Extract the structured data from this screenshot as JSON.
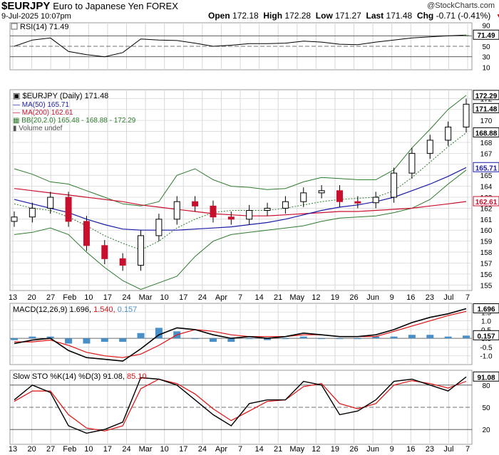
{
  "header": {
    "symbol": "$EURJPY",
    "description": "Euro to Japanese Yen FOREX",
    "watermark": "@StockCharts.com",
    "date": "9-Jul-2025 10:07pm",
    "open_label": "Open",
    "open": "172.18",
    "high_label": "High",
    "high": "172.28",
    "low_label": "Low",
    "low": "171.27",
    "last_label": "Last",
    "last": "171.48",
    "chg_label": "Chg",
    "chg": "-0.71 (-0.41%)",
    "chg_arrow": "▼"
  },
  "rsi_panel": {
    "legend": "RSI(14) 71.49",
    "value_tag": "71.49",
    "ticks": [
      "90",
      "70",
      "50",
      "30",
      "10"
    ]
  },
  "price_panel": {
    "legend": {
      "main": "$EURJPY (Daily) 171.48",
      "ma50": "MA(50) 165.71",
      "ma200": "MA(200) 162.61",
      "bb": "BB(20,2.0) 165.48 - 168.88 - 172.29",
      "volume": "Volume undef"
    },
    "ticks": [
      "172",
      "171",
      "170",
      "169",
      "168",
      "167",
      "166",
      "165",
      "164",
      "163",
      "162",
      "161",
      "160",
      "159",
      "158",
      "157",
      "156",
      "155"
    ],
    "value_tags": {
      "bb_upper": "172.29",
      "last": "171.48",
      "bb_mid": "168.88",
      "ma50": "165.71",
      "ma200": "162.61"
    }
  },
  "macd_panel": {
    "legend_prefix": "MACD(12,26,9)",
    "macd": "1.696",
    "signal": "1.540",
    "hist": "0.157",
    "ticks": [
      "1.5",
      "1.0",
      "0.5",
      "0.0",
      "-0.5",
      "-1.0"
    ]
  },
  "sto_panel": {
    "legend_prefix": "Slow STO %K(14) %D(3)",
    "k": "91.08",
    "d": "85.10",
    "ticks": [
      "80",
      "50",
      "20"
    ]
  },
  "x_axis_labels": [
    "13",
    "20",
    "27",
    "Feb",
    "10",
    "17",
    "24",
    "Mar",
    "10",
    "17",
    "24",
    "Apr",
    "7",
    "14",
    "21",
    "May",
    "12",
    "19",
    "26",
    "Jun",
    "9",
    "16",
    "23",
    "Jul",
    "7"
  ],
  "colors": {
    "up_candle": "#000000",
    "down_candle": "#c8102e",
    "ma50": "#1a1aa6",
    "ma200": "#c8102e",
    "bb": "#2d7a2d",
    "bb_mid": "#2d7a2d",
    "rsi_line": "#000000",
    "rsi_fill": "#2d7a2d",
    "macd_line": "#000000",
    "signal_line": "#e01010",
    "hist": "#4a90c8",
    "sto_k": "#000000",
    "sto_d": "#e01010",
    "grid": "#d8d8d8"
  },
  "chart_data": {
    "type": "line",
    "title": "$EURJPY Euro to Japanese Yen FOREX",
    "x": [
      "Jan 13",
      "Jan 20",
      "Jan 27",
      "Feb 3",
      "Feb 10",
      "Feb 17",
      "Feb 24",
      "Mar 3",
      "Mar 10",
      "Mar 17",
      "Mar 24",
      "Mar 31",
      "Apr 7",
      "Apr 14",
      "Apr 21",
      "Apr 28",
      "May 5",
      "May 12",
      "May 19",
      "May 26",
      "Jun 2",
      "Jun 9",
      "Jun 16",
      "Jun 23",
      "Jun 30",
      "Jul 7"
    ],
    "price_close": [
      161.2,
      162.0,
      163.0,
      160.8,
      158.6,
      157.4,
      156.8,
      159.5,
      161.0,
      162.6,
      162.2,
      161.2,
      161.0,
      161.8,
      162.0,
      162.6,
      163.4,
      163.6,
      162.6,
      162.5,
      163.0,
      165.2,
      167.0,
      168.2,
      169.4,
      171.48
    ],
    "series": [
      {
        "name": "MA(50)",
        "values": [
          162.8,
          162.4,
          162.0,
          161.6,
          161.0,
          160.5,
          160.1,
          160.0,
          160.0,
          160.0,
          160.1,
          160.2,
          160.3,
          160.5,
          160.7,
          161.0,
          161.4,
          161.8,
          162.1,
          162.3,
          162.6,
          163.0,
          163.6,
          164.2,
          164.9,
          165.71
        ]
      },
      {
        "name": "MA(200)",
        "values": [
          163.8,
          163.6,
          163.4,
          163.2,
          163.0,
          162.8,
          162.6,
          162.3,
          162.1,
          161.9,
          161.7,
          161.5,
          161.4,
          161.3,
          161.3,
          161.4,
          161.5,
          161.6,
          161.7,
          161.7,
          161.8,
          161.9,
          162.0,
          162.2,
          162.4,
          162.61
        ]
      },
      {
        "name": "BB upper",
        "values": [
          165.6,
          165.1,
          164.4,
          164.2,
          163.6,
          163.0,
          162.4,
          162.2,
          162.6,
          165.0,
          165.6,
          164.6,
          164.0,
          163.9,
          163.7,
          163.8,
          164.4,
          164.8,
          164.7,
          164.6,
          164.6,
          165.5,
          167.5,
          169.2,
          171.0,
          172.29
        ]
      },
      {
        "name": "BB middle",
        "values": [
          162.4,
          162.0,
          161.8,
          161.2,
          160.4,
          159.5,
          158.8,
          158.2,
          159.0,
          160.2,
          161.0,
          161.6,
          161.8,
          161.8,
          161.8,
          162.0,
          162.3,
          162.6,
          162.8,
          162.9,
          163.0,
          163.6,
          164.8,
          166.2,
          167.6,
          168.88
        ]
      },
      {
        "name": "BB lower",
        "values": [
          159.6,
          159.8,
          160.2,
          159.6,
          158.0,
          156.6,
          155.4,
          154.6,
          155.2,
          155.8,
          157.6,
          159.0,
          159.6,
          159.8,
          160.0,
          160.2,
          160.4,
          160.8,
          161.1,
          161.2,
          161.3,
          161.6,
          162.0,
          162.8,
          164.2,
          165.48
        ]
      }
    ],
    "rsi": [
      50,
      62,
      66,
      40,
      34,
      30,
      38,
      64,
      62,
      61,
      56,
      50,
      52,
      55,
      55,
      56,
      60,
      58,
      54,
      53,
      58,
      62,
      66,
      68,
      70,
      71.49
    ],
    "macd": [
      -0.3,
      -0.1,
      0.0,
      -0.7,
      -1.1,
      -1.2,
      -1.3,
      -0.6,
      0.2,
      0.6,
      0.5,
      0.2,
      0.0,
      0.1,
      0.0,
      0.1,
      0.3,
      0.2,
      0.1,
      0.1,
      0.2,
      0.5,
      0.9,
      1.2,
      1.4,
      1.696
    ],
    "macd_signal": [
      -0.2,
      -0.2,
      -0.1,
      -0.4,
      -0.8,
      -1.0,
      -1.1,
      -0.9,
      -0.4,
      0.2,
      0.5,
      0.4,
      0.2,
      0.1,
      0.1,
      0.1,
      0.2,
      0.2,
      0.1,
      0.1,
      0.1,
      0.4,
      0.7,
      1.0,
      1.3,
      1.54
    ],
    "sto_k": [
      60,
      80,
      70,
      25,
      15,
      20,
      30,
      90,
      88,
      80,
      60,
      40,
      25,
      55,
      60,
      60,
      85,
      80,
      40,
      45,
      60,
      85,
      88,
      80,
      72,
      91.08
    ],
    "sto_d": [
      58,
      72,
      72,
      40,
      22,
      18,
      25,
      75,
      88,
      82,
      68,
      48,
      32,
      45,
      58,
      60,
      78,
      82,
      55,
      48,
      55,
      80,
      86,
      82,
      76,
      85.1
    ],
    "ylim": [
      154.5,
      172.8
    ]
  }
}
